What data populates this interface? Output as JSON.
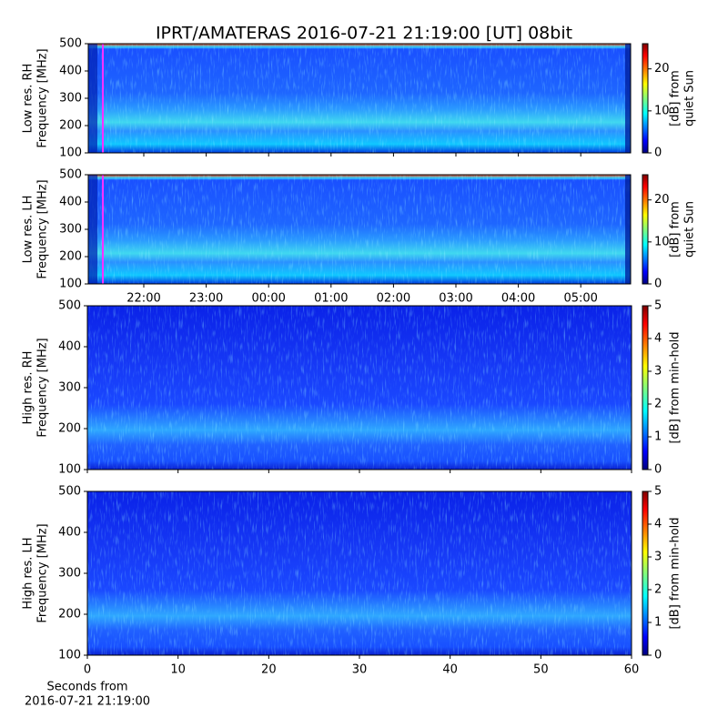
{
  "title": "IPRT/AMATERAS 2016-07-21 21:19:00 [UT]   08bit",
  "chart_data": [
    {
      "type": "heatmap",
      "ylabel": [
        "Low res. RH",
        "Frequency [MHz]"
      ],
      "ylim": [
        100,
        500
      ],
      "yticks": [
        100,
        200,
        300,
        400,
        500
      ],
      "colorbar": {
        "label": [
          "[dB] from",
          "quiet Sun"
        ],
        "lim": [
          0,
          26
        ],
        "ticks": [
          0,
          10,
          20
        ]
      }
    },
    {
      "type": "heatmap",
      "ylabel": [
        "Low res. LH",
        "Frequency [MHz]"
      ],
      "ylim": [
        100,
        500
      ],
      "yticks": [
        100,
        200,
        300,
        400,
        500
      ],
      "colorbar": {
        "label": [
          "[dB] from",
          "quiet Sun"
        ],
        "lim": [
          0,
          26
        ],
        "ticks": [
          0,
          10,
          20
        ]
      },
      "x_tick_labels": [
        "22:00",
        "23:00",
        "00:00",
        "01:00",
        "02:00",
        "03:00",
        "04:00",
        "05:00"
      ]
    },
    {
      "type": "heatmap",
      "ylabel": [
        "High res. RH",
        "Frequency [MHz]"
      ],
      "ylim": [
        100,
        500
      ],
      "yticks": [
        100,
        200,
        300,
        400,
        500
      ],
      "colorbar": {
        "label": [
          "[dB] from min-hold"
        ],
        "lim": [
          0,
          5
        ],
        "ticks": [
          0,
          1,
          2,
          3,
          4,
          5
        ]
      }
    },
    {
      "type": "heatmap",
      "ylabel": [
        "High res. LH",
        "Frequency [MHz]"
      ],
      "ylim": [
        100,
        500
      ],
      "yticks": [
        100,
        200,
        300,
        400,
        500
      ],
      "colorbar": {
        "label": [
          "[dB] from min-hold"
        ],
        "lim": [
          0,
          5
        ],
        "ticks": [
          0,
          1,
          2,
          3,
          4,
          5
        ]
      },
      "xlim": [
        0,
        60
      ],
      "xticks": [
        0,
        10,
        20,
        30,
        40,
        50,
        60
      ],
      "xlabel": [
        "Seconds from",
        "2016-07-21 21:19:00"
      ]
    }
  ]
}
